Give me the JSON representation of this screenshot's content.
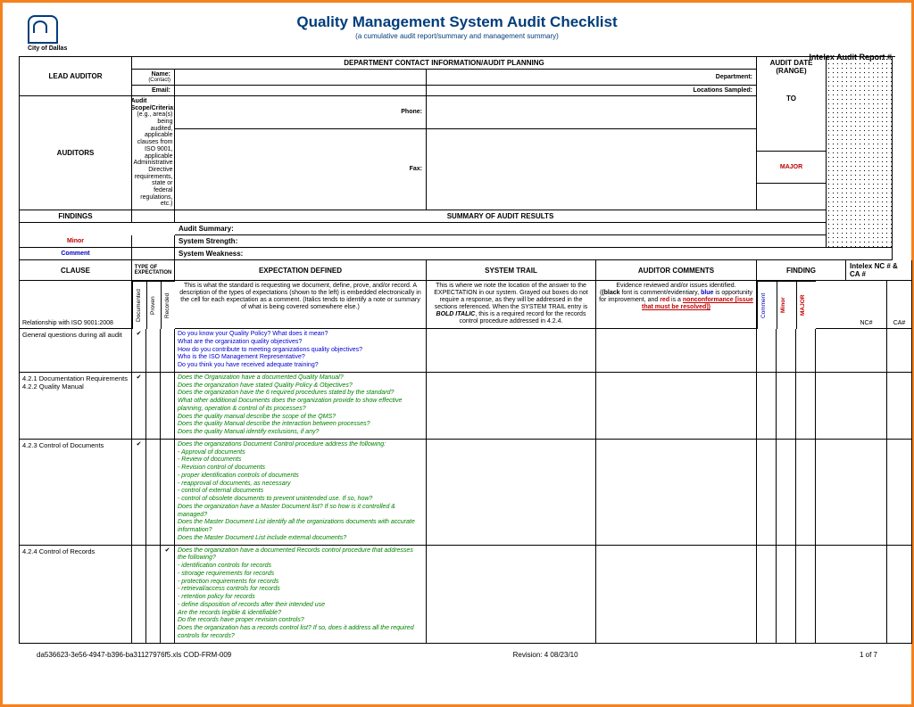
{
  "logo_text": "City of Dallas",
  "title": "Quality Management System Audit Checklist",
  "subtitle": "(a cumulative audit report/summary and management summary)",
  "intelex_header": "Intelex  Audit Report #",
  "top": {
    "lead_auditor": "LEAD AUDITOR",
    "dept_header": "DEPARTMENT CONTACT INFORMATION/AUDIT PLANNING",
    "audit_date": "AUDIT DATE (RANGE)",
    "to": "TO",
    "auditors": "AUDITORS",
    "name": "Name:",
    "name_sub": "(Contact)",
    "email": "Email:",
    "phone": "Phone:",
    "fax": "Fax:",
    "department": "Department:",
    "locations": "Locations Sampled:",
    "scope_title": "Audit Scope/Criteria:",
    "scope_body": "(e.g., area(s) being audited, applicable clauses from ISO 9001, applicable Administrative Directive requirements, state or federal regulations, etc.)",
    "findings": "FINDINGS",
    "summary_head": "SUMMARY OF AUDIT RESULTS",
    "audit_summary": "Audit Summary:",
    "system_strength": "System Strength:",
    "system_weakness": "System Weakness:",
    "major": "MAJOR",
    "minor": "Minor",
    "comment": "Comment"
  },
  "h2": {
    "clause": "CLAUSE",
    "type": "TYPE OF EXPECTATION",
    "expectation": "EXPECTATION DEFINED",
    "system_trail": "SYSTEM TRAIL",
    "auditor_comments": "AUDITOR COMMENTS",
    "finding": "FINDING",
    "intelex": "Intelex NC # & CA #"
  },
  "dh": {
    "clause": "Relationship with ISO 9001:2008",
    "r1": "Documented",
    "r2": "Proven",
    "r3": "Recorded",
    "expectation": "This is what the standard is requesting we document, define, prove, and/or record.  A description of the types of expectations (shown to the left) is embedded electronically in the cell for each expectation as a comment.  (Italics tends to identify a note or summary of what is being covered somewhere else.)",
    "trail_pre": "This is where we note the location of the answer to the EXPECTATION in our system. Grayed out boxes do not require a response, as they will be addressed in the sections referenced. When the SYSTEM TRAIL entry is ",
    "trail_bold": "BOLD ITALIC",
    "trail_post": ", this is a required record for the records control procedure addressed in 4.2.4.",
    "comments_1": "Evidence reviewed and/or issues identified.",
    "comments_2a": "(black",
    "comments_2b": " font is comment/evidentiary, ",
    "comments_2c": "blue",
    "comments_2d": " is opportunity for improvement, and ",
    "comments_2e": "red",
    "comments_2f": " is a ",
    "comments_3": "nonconformance [issue that must be resolved])",
    "fr1": "Comment",
    "fr2": "Minor",
    "fr3": "MAJOR",
    "nc": "NC#",
    "ca": "CA#"
  },
  "rows": [
    {
      "clause": "General questions during all audit",
      "c1": "✔",
      "c2": "",
      "c3": "",
      "type": "blue",
      "questions": [
        "Do you know your Quality Policy? What does it mean?",
        "What are the organization quality objectives?",
        "How do you contribute to meeting organizations quality objectives?",
        "Who is the ISO Management Representative?",
        "Do you think you have received adequate training?"
      ]
    },
    {
      "clause": "4.2.1 Documentation Requirements\n4.2.2 Quality Manual",
      "c1": "✔",
      "c2": "",
      "c3": "",
      "type": "green",
      "questions": [
        "Does the Organization have a documented Quality Manual?",
        "Does the organization have stated Quality Policy & Objectives?",
        "Does the organization have the 6 required procedures stated by the standard?",
        "What other additional Documents does the organization provide to show effective planning, operation & control of its processes?",
        "Does the quality manual describe the scope of the QMS?",
        "Does the quality Manual describe the interaction between processes?",
        "Does the quality Manual identify exclusions, if any?"
      ]
    },
    {
      "clause": "4.2.3 Control of Documents",
      "c1": "✔",
      "c2": "",
      "c3": "",
      "type": "green",
      "questions": [
        "Does the organizations Document Control procedure address the following:",
        "- Approval of documents",
        "- Review of documents",
        "- Revision control of documents",
        "- proper identification controls of documents",
        "- reapproval of documents, as necessary",
        "- control of external documents",
        "- control of obsolete documents to prevent unintended use. If so, how?",
        "Does the organization have a Master Document list? If so how is it controlled & managed?",
        "Does the Master Document List identify all the organizations documents with accurate information?",
        "Does the Master Document List include external documents?"
      ]
    },
    {
      "clause": "4.2.4 Control of Records",
      "c1": "",
      "c2": "",
      "c3": "✔",
      "type": "green",
      "questions": [
        "Does the organization have a documented Records control procedure that addresses the following?",
        "- identification controls for records",
        "- strorage requirements for records",
        "- protection requirements for records",
        "- retrieval/access controls for records",
        "- retention policy for records",
        "- define disposition of records after their intended use",
        "Are the records legible & identifiable?",
        "Do the records have proper revision controls?",
        "Does the organization has a records control list? If so, does it address all the required controls for records?"
      ]
    }
  ],
  "footer": {
    "left": "da536623-3e56-4947-b396-ba31127976f5.xls   COD-FRM-009",
    "center": "Revision:  4     08/23/10",
    "right": "1 of 7"
  },
  "colors": {
    "border": "#f58220",
    "title": "#003d7a",
    "blue": "#0000d0",
    "green": "#008000",
    "red": "#c00000"
  }
}
